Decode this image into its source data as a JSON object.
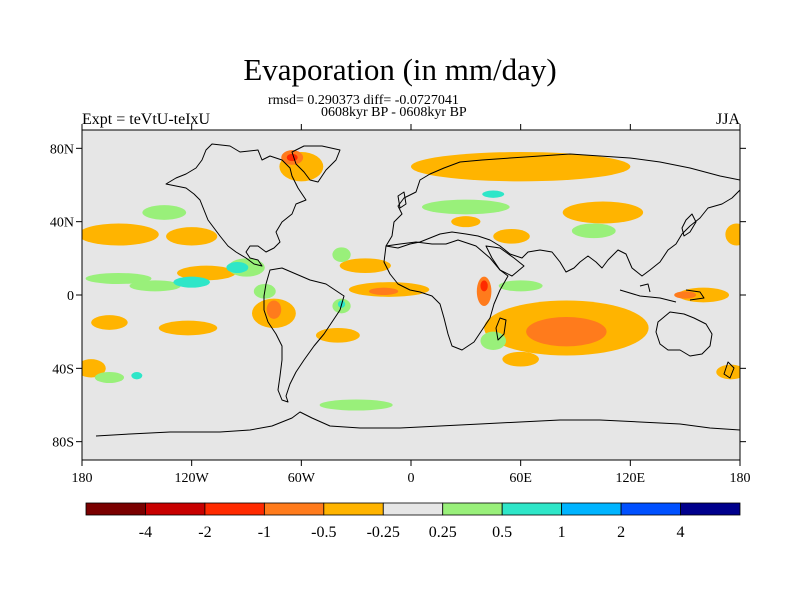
{
  "title": "Evaporation (in mm/day)",
  "stats_line": "rmsd= 0.290373 diff= -0.0727041",
  "period_line": "0608kyr BP - 0608kyr BP",
  "experiment_label": "Expt = teVtU-teIxU",
  "season_label": "JJA",
  "map": {
    "projection": "equirectangular",
    "lon_range": [
      -180,
      180
    ],
    "lat_range": [
      -90,
      90
    ],
    "background_color": "#e6e6e6",
    "y_ticks": [
      {
        "lat": 80,
        "label": "80N"
      },
      {
        "lat": 40,
        "label": "40N"
      },
      {
        "lat": 0,
        "label": "0"
      },
      {
        "lat": -40,
        "label": "40S"
      },
      {
        "lat": -80,
        "label": "80S"
      }
    ],
    "x_ticks": [
      {
        "lon": -180,
        "label": "180"
      },
      {
        "lon": -120,
        "label": "120W"
      },
      {
        "lon": -60,
        "label": "60W"
      },
      {
        "lon": 0,
        "label": "0"
      },
      {
        "lon": 60,
        "label": "60E"
      },
      {
        "lon": 120,
        "label": "120E"
      },
      {
        "lon": 180,
        "label": "180"
      }
    ]
  },
  "colorbar": {
    "colors": [
      "#7a0000",
      "#c80000",
      "#ff2a00",
      "#ff7b1c",
      "#ffb400",
      "#e6e6e6",
      "#99f07a",
      "#2ee6c8",
      "#00b4ff",
      "#0050ff",
      "#00008c"
    ],
    "labels": [
      "-4",
      "-2",
      "-1",
      "-0.5",
      "-0.25",
      "0.25",
      "0.5",
      "1",
      "2",
      "4"
    ]
  },
  "anomaly_regions": [
    {
      "level": 4,
      "lon": -160,
      "lat": 33,
      "rlon": 22,
      "rlat": 6
    },
    {
      "level": 4,
      "lon": -120,
      "lat": 32,
      "rlon": 14,
      "rlat": 5
    },
    {
      "level": 4,
      "lon": -112,
      "lat": 12,
      "rlon": 16,
      "rlat": 4
    },
    {
      "level": 4,
      "lon": -75,
      "lat": -10,
      "rlon": 12,
      "rlat": 8
    },
    {
      "level": 4,
      "lon": -165,
      "lat": -15,
      "rlon": 10,
      "rlat": 4
    },
    {
      "level": 4,
      "lon": -122,
      "lat": -18,
      "rlon": 16,
      "rlat": 4
    },
    {
      "level": 4,
      "lon": -40,
      "lat": -22,
      "rlon": 12,
      "rlat": 4
    },
    {
      "level": 4,
      "lon": -12,
      "lat": 3,
      "rlon": 22,
      "rlat": 4
    },
    {
      "level": 4,
      "lon": 85,
      "lat": -18,
      "rlon": 45,
      "rlat": 15
    },
    {
      "level": 4,
      "lon": 60,
      "lat": -35,
      "rlon": 10,
      "rlat": 4
    },
    {
      "level": 4,
      "lon": 60,
      "lat": 70,
      "rlon": 60,
      "rlat": 8
    },
    {
      "level": 4,
      "lon": 105,
      "lat": 45,
      "rlon": 22,
      "rlat": 6
    },
    {
      "level": 4,
      "lon": 55,
      "lat": 32,
      "rlon": 10,
      "rlat": 4
    },
    {
      "level": 4,
      "lon": 178,
      "lat": 33,
      "rlon": 6,
      "rlat": 6
    },
    {
      "level": 4,
      "lon": 160,
      "lat": 0,
      "rlon": 14,
      "rlat": 4
    },
    {
      "level": 4,
      "lon": -175,
      "lat": -40,
      "rlon": 8,
      "rlat": 5
    },
    {
      "level": 4,
      "lon": 175,
      "lat": -42,
      "rlon": 8,
      "rlat": 4
    },
    {
      "level": 4,
      "lon": -25,
      "lat": 16,
      "rlon": 14,
      "rlat": 4
    },
    {
      "level": 4,
      "lon": 30,
      "lat": 40,
      "rlon": 8,
      "rlat": 3
    },
    {
      "level": 4,
      "lon": -60,
      "lat": 70,
      "rlon": 12,
      "rlat": 8
    },
    {
      "level": 3,
      "lon": 85,
      "lat": -20,
      "rlon": 22,
      "rlat": 8
    },
    {
      "level": 3,
      "lon": -65,
      "lat": 75,
      "rlon": 6,
      "rlat": 4
    },
    {
      "level": 3,
      "lon": -75,
      "lat": -8,
      "rlon": 4,
      "rlat": 5
    },
    {
      "level": 3,
      "lon": -15,
      "lat": 2,
      "rlon": 8,
      "rlat": 2
    },
    {
      "level": 3,
      "lon": 40,
      "lat": 2,
      "rlon": 4,
      "rlat": 8
    },
    {
      "level": 3,
      "lon": 150,
      "lat": 0,
      "rlon": 6,
      "rlat": 2
    },
    {
      "level": 2,
      "lon": -65,
      "lat": 75,
      "rlon": 3,
      "rlat": 2
    },
    {
      "level": 2,
      "lon": 40,
      "lat": 5,
      "rlon": 2,
      "rlat": 3
    },
    {
      "level": 6,
      "lon": -160,
      "lat": 9,
      "rlon": 18,
      "rlat": 3
    },
    {
      "level": 6,
      "lon": -140,
      "lat": 5,
      "rlon": 14,
      "rlat": 3
    },
    {
      "level": 6,
      "lon": -90,
      "lat": 15,
      "rlon": 10,
      "rlat": 5
    },
    {
      "level": 6,
      "lon": -135,
      "lat": 45,
      "rlon": 12,
      "rlat": 4
    },
    {
      "level": 6,
      "lon": -80,
      "lat": 2,
      "rlon": 6,
      "rlat": 4
    },
    {
      "level": 6,
      "lon": -38,
      "lat": -6,
      "rlon": 5,
      "rlat": 4
    },
    {
      "level": 6,
      "lon": -38,
      "lat": 22,
      "rlon": 5,
      "rlat": 4
    },
    {
      "level": 6,
      "lon": 30,
      "lat": 48,
      "rlon": 24,
      "rlat": 4
    },
    {
      "level": 6,
      "lon": 100,
      "lat": 35,
      "rlon": 12,
      "rlat": 4
    },
    {
      "level": 6,
      "lon": 60,
      "lat": 5,
      "rlon": 12,
      "rlat": 3
    },
    {
      "level": 6,
      "lon": 45,
      "lat": -25,
      "rlon": 7,
      "rlat": 5
    },
    {
      "level": 6,
      "lon": -30,
      "lat": -60,
      "rlon": 20,
      "rlat": 3
    },
    {
      "level": 6,
      "lon": -165,
      "lat": -45,
      "rlon": 8,
      "rlat": 3
    },
    {
      "level": 7,
      "lon": -95,
      "lat": 15,
      "rlon": 6,
      "rlat": 3
    },
    {
      "level": 7,
      "lon": -120,
      "lat": 7,
      "rlon": 10,
      "rlat": 3
    },
    {
      "level": 7,
      "lon": -38,
      "lat": -5,
      "rlon": 2,
      "rlat": 2
    },
    {
      "level": 7,
      "lon": -150,
      "lat": -44,
      "rlon": 3,
      "rlat": 2
    },
    {
      "level": 7,
      "lon": 45,
      "lat": 55,
      "rlon": 6,
      "rlat": 2
    }
  ]
}
